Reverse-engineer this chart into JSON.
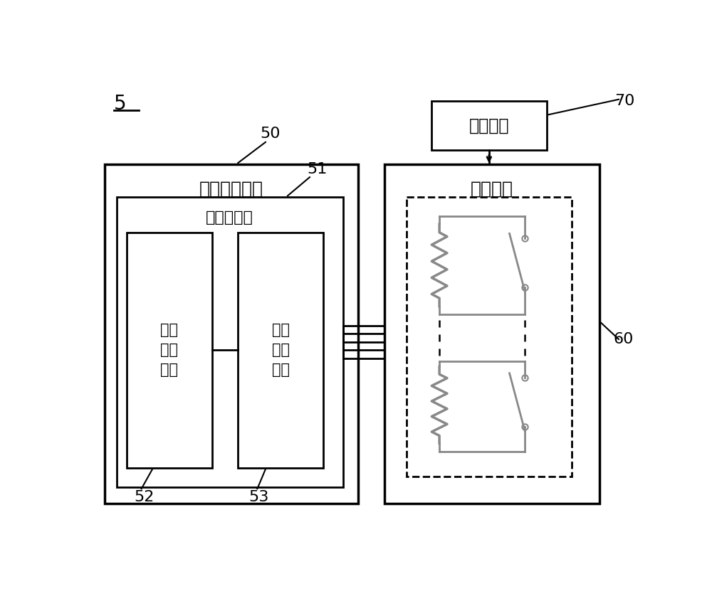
{
  "bg_color": "#ffffff",
  "label_5": "5",
  "label_50": "50",
  "label_51": "51",
  "label_52": "52",
  "label_53": "53",
  "label_60": "60",
  "label_70": "70",
  "text_signal": "信号输出单元",
  "text_temp_detector": "温度检测器",
  "text_temp_module": "温度\n检测\n模块",
  "text_adc_module": "模数\n转换\n模块",
  "text_resistor_array": "电阵阵列",
  "text_gate_module": "选通模块",
  "line_color": "#000000",
  "gray_color": "#888888"
}
